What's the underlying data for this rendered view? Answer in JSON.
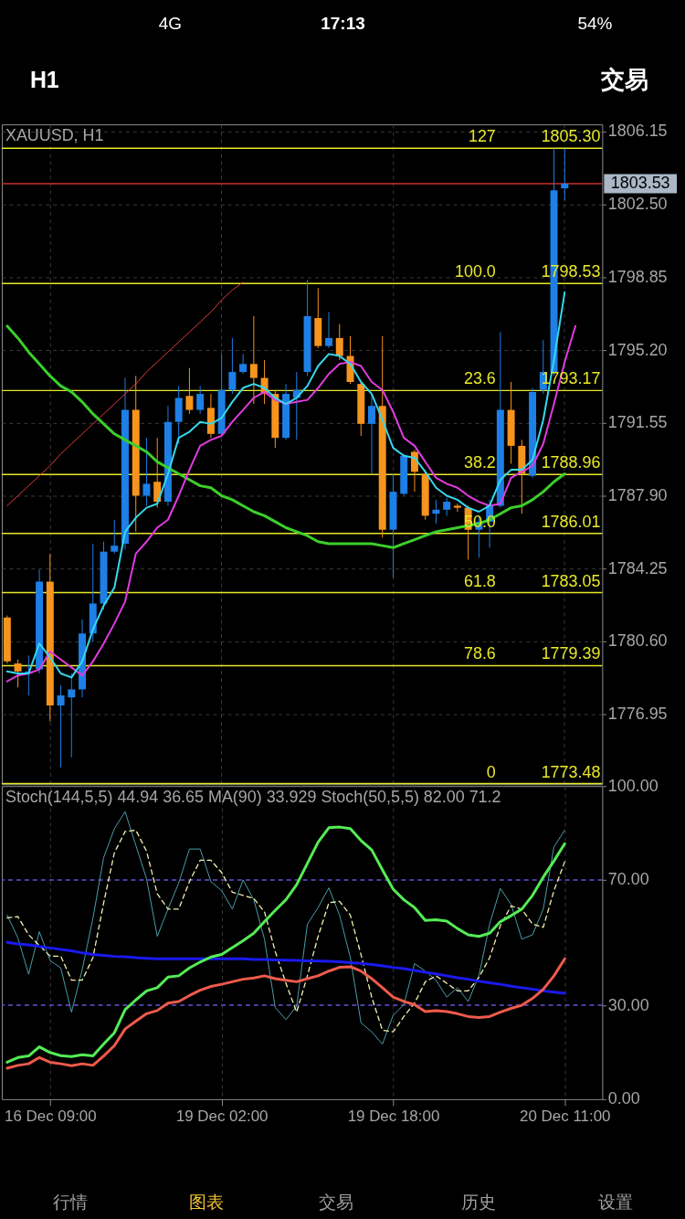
{
  "chart_data": [
    {
      "type": "candlestick",
      "title": "XAUUSD, H1",
      "categories": [
        null,
        null,
        null,
        null,
        null,
        null,
        null,
        null,
        null,
        null,
        null,
        null,
        null,
        null,
        null,
        null,
        null,
        null,
        null,
        null,
        null,
        null,
        null,
        null,
        null,
        null,
        null,
        null,
        null,
        null,
        null,
        null,
        null,
        null,
        null,
        null,
        null,
        null,
        null,
        null,
        null,
        null,
        null,
        null,
        null,
        null,
        null,
        null,
        null,
        null,
        null,
        null,
        null,
        null,
        null,
        null
      ],
      "ohlc": [
        [
          1781.8,
          1781.9,
          1779.5,
          1779.6
        ],
        [
          1779.5,
          1779.7,
          1778.3,
          1779.1
        ],
        [
          1779.0,
          1779.9,
          1777.9,
          1779.1
        ],
        [
          1779.2,
          1784.2,
          1779.0,
          1783.6
        ],
        [
          1783.6,
          1785.0,
          1776.6,
          1777.4
        ],
        [
          1777.4,
          1778.4,
          1774.3,
          1777.9
        ],
        [
          1777.8,
          1779.0,
          1774.8,
          1778.2
        ],
        [
          1778.2,
          1781.7,
          1777.8,
          1781.0
        ],
        [
          1781.0,
          1785.5,
          1780.6,
          1782.5
        ],
        [
          1782.5,
          1785.6,
          1782.2,
          1785.1
        ],
        [
          1785.1,
          1786.7,
          1785.0,
          1785.4
        ],
        [
          1785.5,
          1793.8,
          1785.2,
          1792.2
        ],
        [
          1792.2,
          1793.9,
          1786.1,
          1787.9
        ],
        [
          1787.9,
          1790.8,
          1787.4,
          1788.5
        ],
        [
          1788.6,
          1790.8,
          1787.3,
          1787.6
        ],
        [
          1787.6,
          1792.4,
          1787.4,
          1791.6
        ],
        [
          1791.6,
          1793.4,
          1790.5,
          1792.8
        ],
        [
          1792.9,
          1794.3,
          1792.0,
          1792.2
        ],
        [
          1792.2,
          1793.4,
          1792.0,
          1793.0
        ],
        [
          1792.3,
          1793.0,
          1790.8,
          1791.0
        ],
        [
          1791.0,
          1795.0,
          1790.9,
          1793.2
        ],
        [
          1793.2,
          1795.8,
          1793.0,
          1794.1
        ],
        [
          1794.1,
          1795.0,
          1794.0,
          1794.5
        ],
        [
          1794.5,
          1796.9,
          1792.5,
          1793.8
        ],
        [
          1793.8,
          1794.7,
          1792.5,
          1793.0
        ],
        [
          1793.0,
          1793.2,
          1790.3,
          1790.8
        ],
        [
          1790.8,
          1793.5,
          1790.7,
          1793.0
        ],
        [
          1792.8,
          1794.1,
          1790.7,
          1793.2
        ],
        [
          1794.1,
          1798.7,
          1793.9,
          1796.9
        ],
        [
          1796.8,
          1798.3,
          1795.3,
          1795.4
        ],
        [
          1795.4,
          1797.1,
          1795.3,
          1795.8
        ],
        [
          1795.8,
          1796.5,
          1794.7,
          1794.9
        ],
        [
          1794.9,
          1795.9,
          1793.5,
          1793.6
        ],
        [
          1793.5,
          1793.6,
          1790.9,
          1791.5
        ],
        [
          1791.5,
          1793.0,
          1789.0,
          1792.4
        ],
        [
          1792.4,
          1795.9,
          1785.8,
          1786.2
        ],
        [
          1786.2,
          1789.0,
          1783.8,
          1788.1
        ],
        [
          1788.0,
          1790.0,
          1787.9,
          1789.9
        ],
        [
          1790.1,
          1790.2,
          1788.1,
          1789.1
        ],
        [
          1789.0,
          1789.2,
          1786.7,
          1786.9
        ],
        [
          1787.0,
          1787.7,
          1786.5,
          1787.2
        ],
        [
          1787.2,
          1787.8,
          1786.9,
          1787.6
        ],
        [
          1787.4,
          1787.5,
          1787.1,
          1787.3
        ],
        [
          1787.3,
          1787.4,
          1784.7,
          1786.2
        ],
        [
          1786.2,
          1786.9,
          1784.8,
          1786.6
        ],
        [
          1786.6,
          1787.7,
          1785.3,
          1787.4
        ],
        [
          1787.4,
          1796.1,
          1787.3,
          1792.2
        ],
        [
          1792.2,
          1793.6,
          1789.5,
          1790.4
        ],
        [
          1790.4,
          1790.7,
          1787.0,
          1789.0
        ],
        [
          1788.9,
          1793.3,
          1788.8,
          1793.1
        ],
        [
          1793.2,
          1795.7,
          1793.0,
          1794.1
        ],
        [
          1794.1,
          1805.3,
          1793.9,
          1803.2
        ],
        [
          1803.3,
          1805.3,
          1802.7,
          1803.53
        ],
        null,
        null,
        null
      ],
      "colors": [
        "#f7941d",
        "#f7941d",
        "#1e7fe6",
        "#1e7fe6",
        "#f7941d",
        "#1e7fe6",
        "#1e7fe6",
        "#1e7fe6",
        "#1e7fe6",
        "#1e7fe6",
        "#1e7fe6",
        "#1e7fe6",
        "#f7941d",
        "#1e7fe6",
        "#f7941d",
        "#1e7fe6",
        "#1e7fe6",
        "#f7941d",
        "#1e7fe6",
        "#f7941d",
        "#1e7fe6",
        "#1e7fe6",
        "#1e7fe6",
        "#f7941d",
        "#f7941d",
        "#f7941d",
        "#1e7fe6",
        "#1e7fe6",
        "#1e7fe6",
        "#f7941d",
        "#1e7fe6",
        "#f7941d",
        "#f7941d",
        "#f7941d",
        "#1e7fe6",
        "#f7941d",
        "#1e7fe6",
        "#1e7fe6",
        "#f7941d",
        "#f7941d",
        "#1e7fe6",
        "#1e7fe6",
        "#f7941d",
        "#f7941d",
        "#1e7fe6",
        "#1e7fe6",
        "#1e7fe6",
        "#f7941d",
        "#f7941d",
        "#1e7fe6",
        "#1e7fe6",
        "#1e7fe6",
        "#1e7fe6",
        null,
        null,
        null
      ],
      "series": [
        {
          "type": "line",
          "color": "#e23b3b",
          "values": [
            1787.4,
            1787.9,
            1788.4,
            1788.9,
            1789.4,
            1790.0,
            1790.5,
            1791.0,
            1791.5,
            1792.0,
            1792.5,
            1793.0,
            1793.5,
            1794.1,
            1794.6,
            1795.1,
            1795.6,
            1796.1,
            1796.6,
            1797.1,
            1797.7,
            1798.2,
            1798.6,
            null,
            null,
            null,
            null,
            null,
            null,
            null,
            null,
            null,
            null,
            null,
            null,
            null,
            null,
            null,
            null,
            null,
            null,
            null,
            null,
            null,
            null,
            null,
            null,
            null,
            null,
            null,
            null,
            null,
            null,
            null,
            null,
            null
          ]
        },
        {
          "type": "line",
          "color": "#3ccf2a",
          "values": [
            1796.4,
            1795.8,
            1795.1,
            1794.5,
            1793.9,
            1793.4,
            1793.1,
            1792.6,
            1792.0,
            1791.5,
            1791.0,
            1790.7,
            1790.4,
            1790.1,
            1789.6,
            1789.3,
            1789.0,
            1788.7,
            1788.4,
            1788.3,
            1787.9,
            1787.7,
            1787.4,
            1787.1,
            1786.9,
            1786.6,
            1786.3,
            1786.1,
            1785.9,
            1785.6,
            1785.5,
            1785.5,
            1785.5,
            1785.5,
            1785.5,
            1785.4,
            1785.3,
            1785.5,
            1785.7,
            1785.9,
            1786.1,
            1786.2,
            1786.3,
            1786.4,
            1786.5,
            1786.7,
            1787.0,
            1787.3,
            1787.4,
            1787.7,
            1788.1,
            1788.6,
            1789.0,
            null,
            null,
            null
          ]
        },
        {
          "type": "line",
          "color": "#e03ce0",
          "values": [
            1778.6,
            1778.9,
            1779.0,
            1779.2,
            1780.1,
            1779.7,
            1779.3,
            1778.9,
            1779.6,
            1780.5,
            1781.5,
            1782.6,
            1785.0,
            1785.6,
            1786.3,
            1786.7,
            1787.9,
            1789.2,
            1790.4,
            1790.7,
            1790.9,
            1791.6,
            1792.2,
            1792.8,
            1793.1,
            1792.7,
            1792.5,
            1792.6,
            1792.7,
            1793.3,
            1794.0,
            1794.5,
            1794.6,
            1794.4,
            1793.6,
            1793.2,
            1792.1,
            1790.8,
            1790.4,
            1789.6,
            1788.8,
            1788.5,
            1788.3,
            1787.9,
            1787.6,
            1787.4,
            1787.5,
            1788.8,
            1789.1,
            1789.4,
            1790.5,
            1792.5,
            1794.6,
            1796.4,
            null,
            null
          ]
        },
        {
          "type": "line",
          "color": "#35d8ec",
          "values": [
            1779.1,
            1779.0,
            1779.0,
            1780.5,
            1779.8,
            1779.0,
            1778.8,
            1779.6,
            1781.2,
            1782.4,
            1783.3,
            1786.1,
            1786.8,
            1787.3,
            1787.5,
            1789.0,
            1790.8,
            1791.1,
            1791.6,
            1791.5,
            1791.8,
            1792.6,
            1793.3,
            1793.5,
            1793.3,
            1792.8,
            1792.5,
            1792.8,
            1793.4,
            1794.4,
            1795.0,
            1794.9,
            1794.5,
            1793.6,
            1793.0,
            1791.7,
            1790.3,
            1789.9,
            1789.8,
            1789.1,
            1788.3,
            1787.9,
            1787.7,
            1787.3,
            1787.1,
            1787.4,
            1788.7,
            1789.2,
            1789.2,
            1789.7,
            1791.7,
            1794.7,
            1798.1,
            null,
            null,
            null
          ]
        }
      ],
      "ref_lines": [
        {
          "axis": "y",
          "value": 1805.3,
          "label": "1805.30",
          "color": "#e8e82a"
        },
        {
          "axis": "y",
          "value": 1798.53,
          "label": "1798.53",
          "color": "#e8e82a"
        },
        {
          "axis": "y",
          "value": 1793.17,
          "label": "1793.17",
          "color": "#e8e82a"
        },
        {
          "axis": "y",
          "value": 1788.96,
          "label": "1788.96",
          "color": "#e8e82a"
        },
        {
          "axis": "y",
          "value": 1786.01,
          "label": "1786.01",
          "color": "#e8e82a"
        },
        {
          "axis": "y",
          "value": 1783.05,
          "label": "1783.05",
          "color": "#e8e82a"
        },
        {
          "axis": "y",
          "value": 1779.39,
          "label": "1779.39",
          "color": "#e8e82a"
        },
        {
          "axis": "y",
          "value": 1773.48,
          "label": "1773.48",
          "color": "#e8e82a"
        },
        {
          "axis": "y",
          "value": 1803.53,
          "label": "1803.53",
          "color": "#c83030"
        }
      ],
      "annotations": [
        "4G",
        "17:13",
        "54%",
        "H1",
        "交易",
        {
          "text": "127",
          "y": 1805.3
        },
        {
          "text": "100.0",
          "y": 1798.53
        },
        {
          "text": "23.6",
          "y": 1793.17
        },
        {
          "text": "38.2",
          "y": 1788.96
        },
        {
          "text": "50.0",
          "y": 1786.01
        },
        {
          "text": "61.8",
          "y": 1783.05
        },
        {
          "text": "78.6",
          "y": 1779.39
        },
        {
          "text": "0",
          "y": 1773.48
        }
      ],
      "ylim": [
        1773.45,
        1806.5
      ],
      "yticks": [
        1776.95,
        {
          "value": 1780.6,
          "label": "1780.60"
        },
        1784.25,
        {
          "value": 1787.9,
          "label": "1787.90"
        },
        1791.55,
        {
          "value": 1795.2,
          "label": "1795.20"
        },
        1798.85,
        {
          "value": 1802.5,
          "label": "1802.50"
        },
        1806.15
      ],
      "grid": true,
      "tick_labels": "y"
    },
    {
      "type": "line",
      "title": "Stoch(144,5,5) 44.94 36.65 MA(90) 33.929 Stoch(50,5,5) 82.00 71.2",
      "categories": [
        null,
        null,
        null,
        null,
        "16 Dec 09:00",
        null,
        null,
        null,
        null,
        null,
        null,
        null,
        null,
        null,
        null,
        null,
        null,
        null,
        null,
        null,
        "19 Dec 02:00",
        null,
        null,
        null,
        null,
        null,
        null,
        null,
        null,
        null,
        null,
        null,
        null,
        null,
        null,
        null,
        "19 Dec 18:00",
        null,
        null,
        null,
        null,
        null,
        null,
        null,
        null,
        null,
        null,
        null,
        null,
        null,
        null,
        null,
        "20 Dec 11:00",
        null,
        null,
        null
      ],
      "series": [
        {
          "color": "#4b9ea8",
          "values": [
            58.8,
            51.5,
            39.9,
            53.5,
            44.3,
            41.9,
            27.8,
            41.4,
            57.8,
            77.2,
            86.4,
            91.8,
            81.1,
            70.4,
            52.0,
            60.7,
            69.0,
            79.9,
            79.9,
            69.5,
            66.6,
            60.7,
            70.0,
            63.7,
            51.1,
            29.3,
            25.4,
            29.7,
            55.9,
            61.2,
            67.5,
            58.8,
            45.3,
            24.4,
            21.5,
            17.6,
            26.8,
            30.2,
            43.3,
            40.9,
            38.0,
            32.6,
            35.6,
            31.2,
            39.4,
            55.9,
            67.3,
            62.2,
            51.1,
            52.5,
            60.7,
            80.6,
            85.9,
            null,
            null,
            null
          ]
        },
        {
          "color": "#f2f2b0",
          "line_style": "dashed",
          "values": [
            57.9,
            58.3,
            52.5,
            49.1,
            45.7,
            45.7,
            38.0,
            38.0,
            45.2,
            62.7,
            78.7,
            85.5,
            85.9,
            79.2,
            65.6,
            60.7,
            60.7,
            69.5,
            76.3,
            76.3,
            72.4,
            66.1,
            65.1,
            64.1,
            59.8,
            47.2,
            37.0,
            27.8,
            39.4,
            52.0,
            62.7,
            63.2,
            58.8,
            46.2,
            32.6,
            22.0,
            21.5,
            26.4,
            30.7,
            37.5,
            39.4,
            37.0,
            34.6,
            34.6,
            38.9,
            45.2,
            55.4,
            61.7,
            60.7,
            55.9,
            54.9,
            66.6,
            75.8,
            null,
            null,
            null
          ]
        },
        {
          "color": "#1a1aee",
          "values": [
            50.1,
            49.6,
            49.3,
            48.8,
            48.3,
            47.8,
            47.4,
            46.7,
            46.2,
            45.9,
            45.6,
            45.5,
            45.2,
            45.0,
            44.8,
            44.8,
            44.8,
            44.8,
            44.8,
            44.8,
            44.8,
            44.8,
            44.8,
            44.6,
            44.6,
            44.5,
            44.4,
            44.3,
            44.2,
            44.1,
            44.0,
            43.9,
            43.6,
            43.4,
            43.0,
            42.6,
            42.1,
            41.7,
            41.1,
            40.5,
            40.0,
            39.4,
            38.8,
            38.3,
            37.7,
            37.2,
            36.7,
            36.1,
            35.6,
            35.1,
            34.6,
            34.2,
            33.8,
            null,
            null,
            null
          ]
        },
        {
          "color": "#ee5a4c",
          "values": [
            9.9,
            10.8,
            11.3,
            13.3,
            11.8,
            11.3,
            10.7,
            11.3,
            10.8,
            13.8,
            17.1,
            22.4,
            24.9,
            27.3,
            28.3,
            30.7,
            31.2,
            33.1,
            34.8,
            36.0,
            36.7,
            37.5,
            38.3,
            38.7,
            39.4,
            38.5,
            38.0,
            37.5,
            38.5,
            39.4,
            40.9,
            42.1,
            42.3,
            40.9,
            38.5,
            35.6,
            32.6,
            31.2,
            30.2,
            28.0,
            28.3,
            28.0,
            27.3,
            26.4,
            26.1,
            26.4,
            27.8,
            29.0,
            30.0,
            32.2,
            35.1,
            39.4,
            44.8,
            null,
            null,
            null
          ]
        },
        {
          "color": "#55ec55",
          "values": [
            11.8,
            13.3,
            13.8,
            16.7,
            14.9,
            13.9,
            13.6,
            14.2,
            13.8,
            17.6,
            21.2,
            28.6,
            31.7,
            34.6,
            35.6,
            39.0,
            39.4,
            41.9,
            43.8,
            45.4,
            46.2,
            48.4,
            50.6,
            53.0,
            56.7,
            60.3,
            63.7,
            68.5,
            75.3,
            82.1,
            86.7,
            86.9,
            86.4,
            82.6,
            79.6,
            73.2,
            67.1,
            63.7,
            61.2,
            57.1,
            57.3,
            56.9,
            54.5,
            52.5,
            52.0,
            53.0,
            56.7,
            58.6,
            60.7,
            65.1,
            70.9,
            76.1,
            81.6,
            null,
            null,
            null
          ]
        }
      ],
      "ref_lines": [
        {
          "axis": "y",
          "value": 70,
          "color": "#6a4fd6",
          "line_style": "dashed"
        },
        {
          "axis": "y",
          "value": 30,
          "color": "#6a4fd6",
          "line_style": "dashed"
        }
      ],
      "annotations": [
        "行情",
        "图表",
        "交易",
        "历史",
        "设置"
      ],
      "ylim": [
        0,
        100
      ],
      "yticks": [
        {
          "value": 0,
          "label": "0.00"
        },
        {
          "value": 30,
          "label": "30.00"
        },
        {
          "value": 70,
          "label": "70.00"
        },
        {
          "value": 100,
          "label": "100.00"
        }
      ],
      "grid": "x"
    }
  ]
}
